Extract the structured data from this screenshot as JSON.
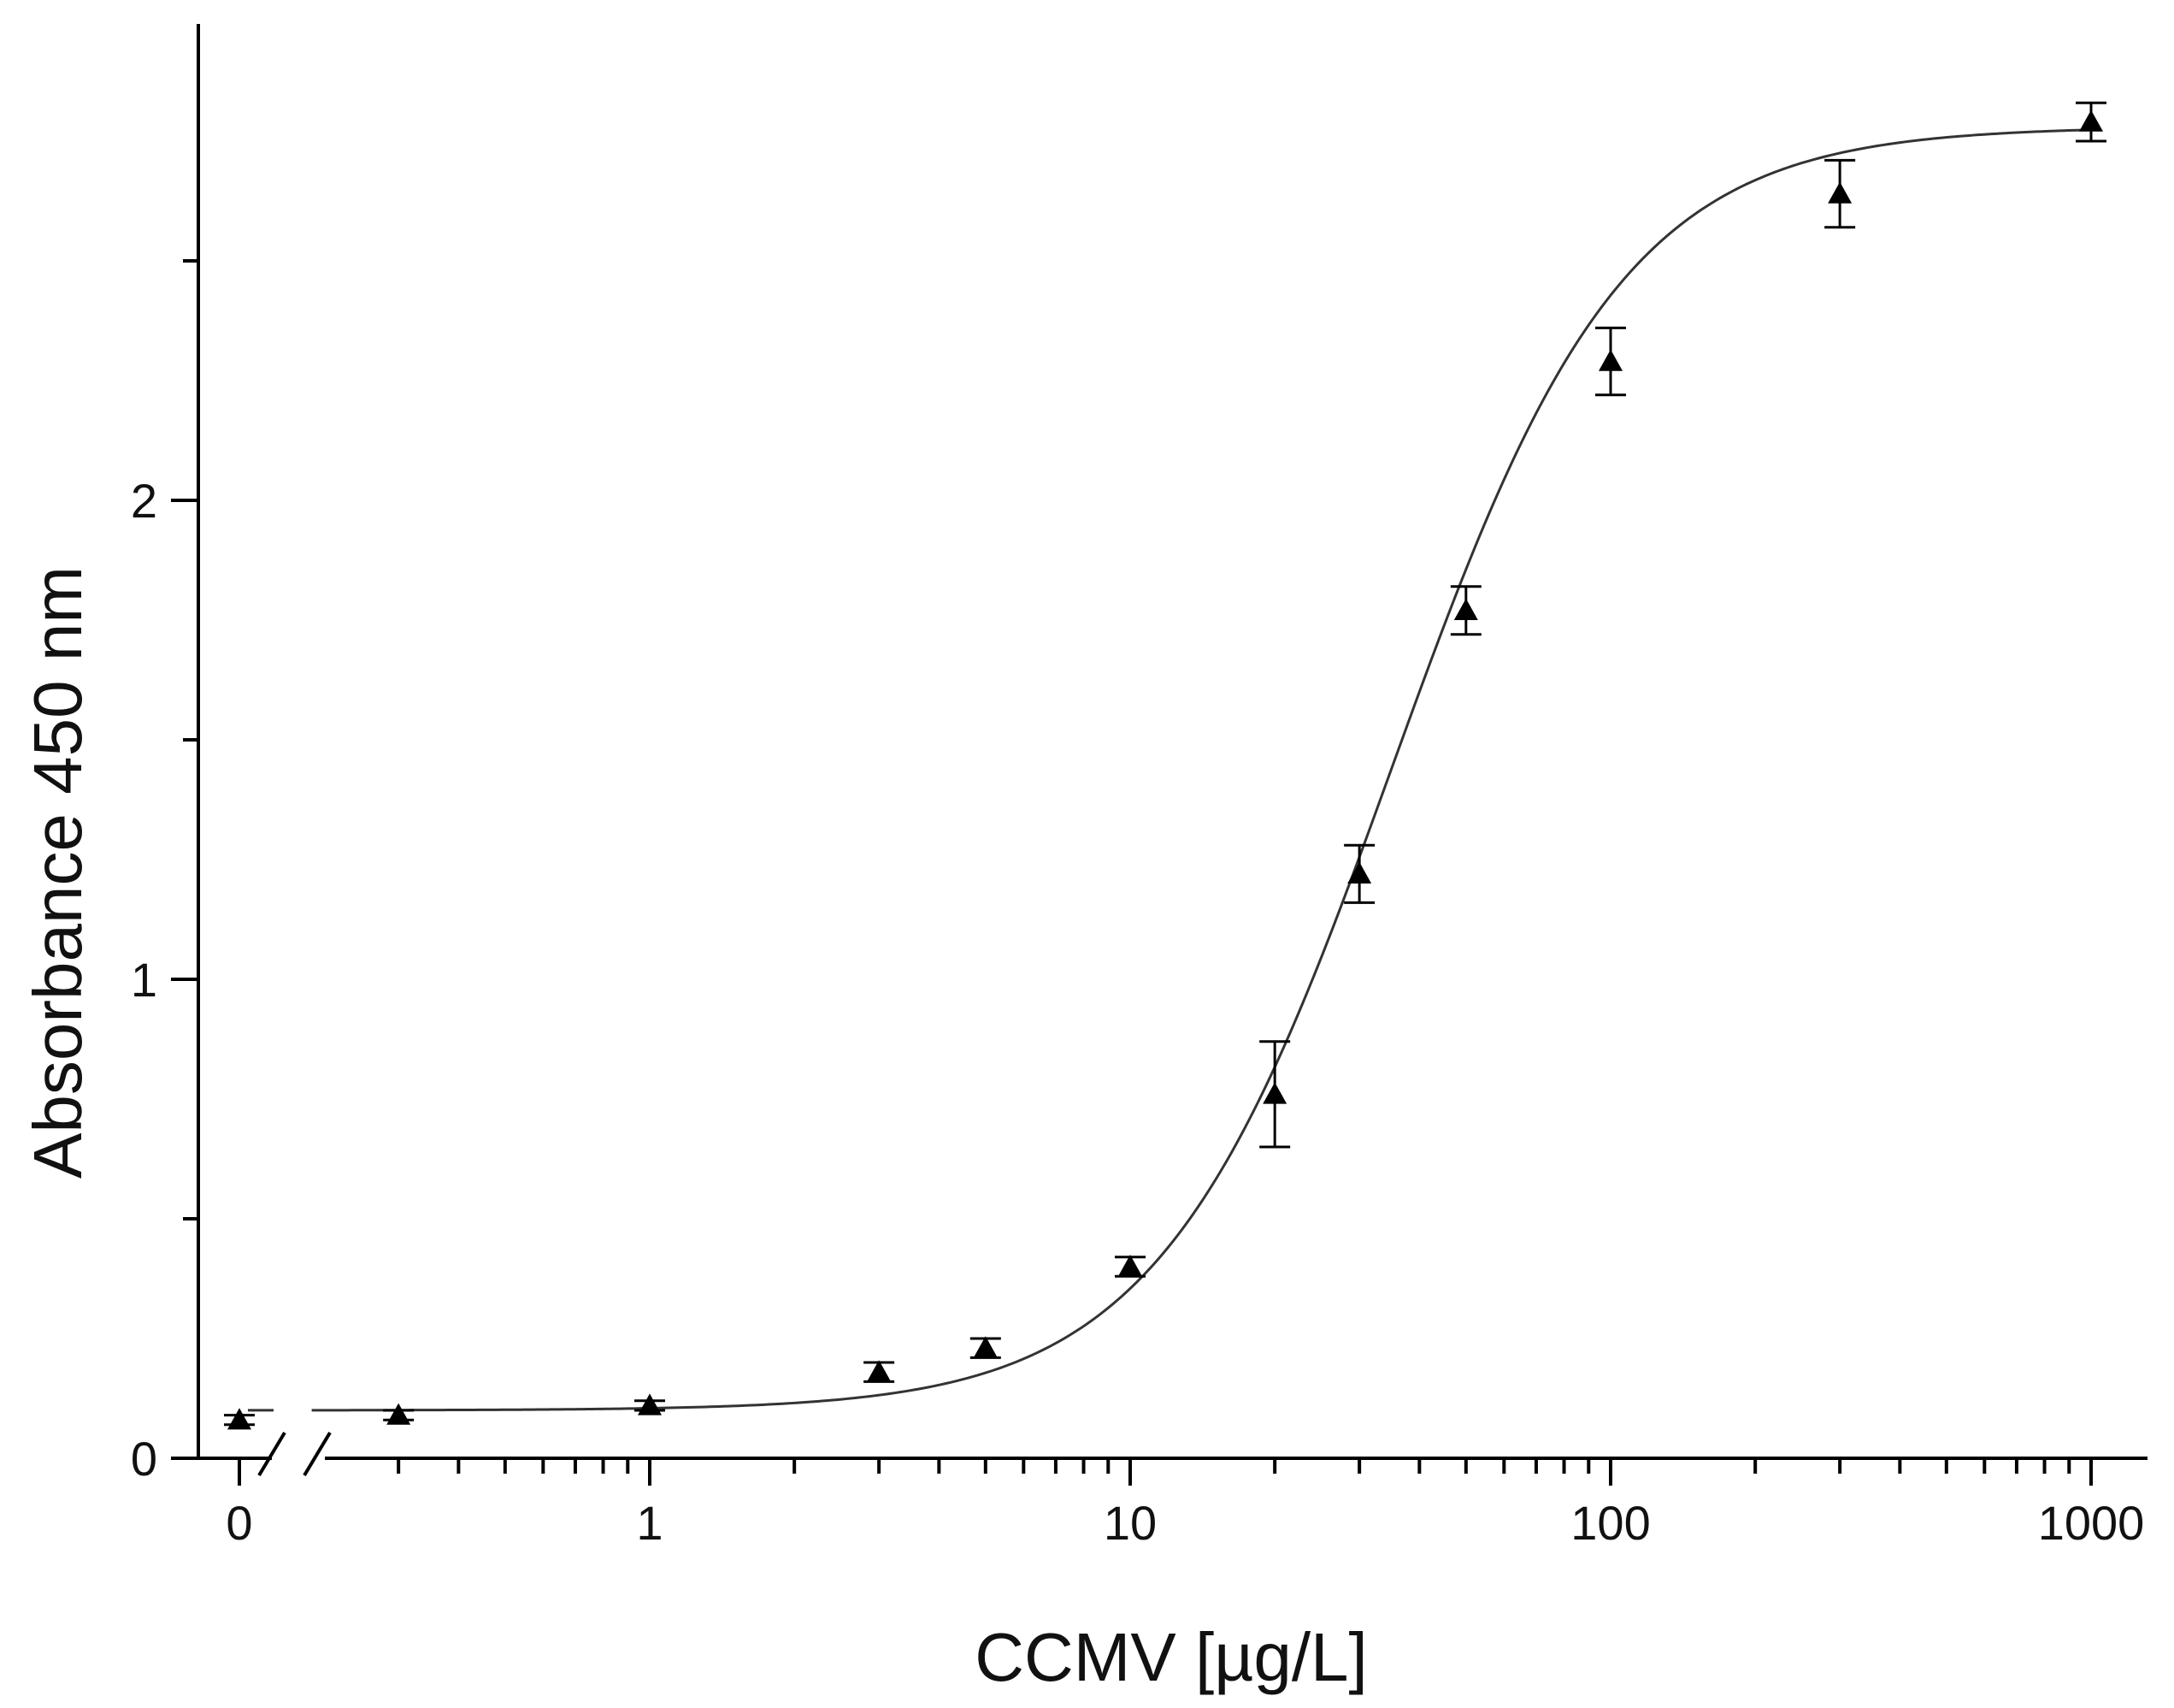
{
  "chart_data": {
    "type": "scatter",
    "title": "",
    "xlabel": "CCMV [µg/L]",
    "ylabel": "Absorbance 450 nm",
    "x_scale": "log with axis break; 0 shown before break",
    "xlim": [
      0.15,
      1200
    ],
    "ylim": [
      0,
      3
    ],
    "x_tick_labels": [
      "0",
      "1",
      "10",
      "100",
      "1000"
    ],
    "y_tick_labels": [
      "0",
      "1",
      "2"
    ],
    "grid": false,
    "legend": "none",
    "marker": "triangle",
    "color": "#000000",
    "series": [
      {
        "x": [
          0,
          0.3,
          1,
          3,
          5,
          10,
          20,
          30,
          50,
          100,
          300,
          1000
        ],
        "y": [
          0.08,
          0.09,
          0.11,
          0.18,
          0.23,
          0.4,
          0.76,
          1.22,
          1.77,
          2.29,
          2.64,
          2.79
        ],
        "error": [
          0.01,
          0.01,
          0.01,
          0.02,
          0.02,
          0.02,
          0.11,
          0.06,
          0.05,
          0.07,
          0.07,
          0.04
        ]
      }
    ],
    "fit_curve": {
      "type": "4PL",
      "bottom": 0.1,
      "top": 2.78,
      "ec50": 35,
      "hill": 1.8
    }
  }
}
